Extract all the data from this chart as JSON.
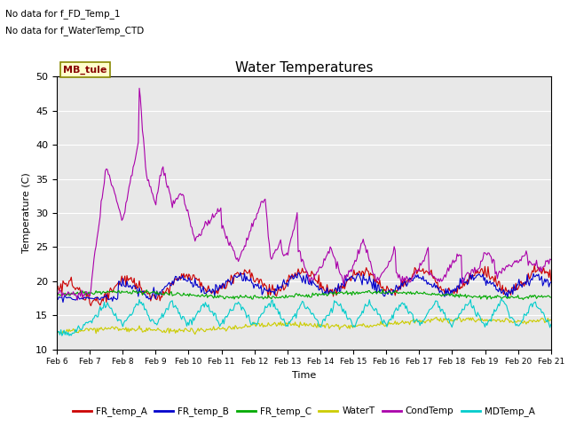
{
  "title": "Water Temperatures",
  "xlabel": "Time",
  "ylabel": "Temperature (C)",
  "ylim": [
    10,
    50
  ],
  "background_color": "#e8e8e8",
  "annotations": [
    "No data for f_FD_Temp_1",
    "No data for f_WaterTemp_CTD"
  ],
  "mb_tule_label": "MB_tule",
  "x_tick_labels": [
    "Feb 6",
    "Feb 7",
    "Feb 8",
    "Feb 9",
    "Feb 10",
    "Feb 11",
    "Feb 12",
    "Feb 13",
    "Feb 14",
    "Feb 15",
    "Feb 16",
    "Feb 17",
    "Feb 18",
    "Feb 19",
    "Feb 20",
    "Feb 21"
  ],
  "legend": [
    {
      "label": "FR_temp_A",
      "color": "#cc0000"
    },
    {
      "label": "FR_temp_B",
      "color": "#0000cc"
    },
    {
      "label": "FR_temp_C",
      "color": "#00aa00"
    },
    {
      "label": "WaterT",
      "color": "#cccc00"
    },
    {
      "label": "CondTemp",
      "color": "#aa00aa"
    },
    {
      "label": "MDTemp_A",
      "color": "#00cccc"
    }
  ],
  "num_points": 480,
  "grid_color": "#ffffff",
  "yticks": [
    10,
    15,
    20,
    25,
    30,
    35,
    40,
    45,
    50
  ]
}
